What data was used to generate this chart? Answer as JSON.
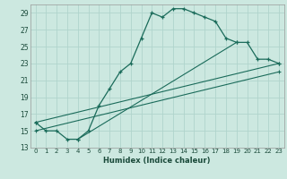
{
  "xlabel": "Humidex (Indice chaleur)",
  "background_color": "#cce8e0",
  "grid_color": "#b0d4cc",
  "line_color": "#1a6b5a",
  "xlim": [
    -0.5,
    23.5
  ],
  "ylim": [
    13,
    30
  ],
  "yticks": [
    13,
    15,
    17,
    19,
    21,
    23,
    25,
    27,
    29
  ],
  "xticks": [
    0,
    1,
    2,
    3,
    4,
    5,
    6,
    7,
    8,
    9,
    10,
    11,
    12,
    13,
    14,
    15,
    16,
    17,
    18,
    19,
    20,
    21,
    22,
    23
  ],
  "series": [
    [
      0,
      16
    ],
    [
      1,
      15
    ],
    [
      2,
      15
    ],
    [
      3,
      14
    ],
    [
      4,
      14
    ],
    [
      5,
      15
    ],
    [
      6,
      18
    ],
    [
      7,
      20
    ],
    [
      8,
      22
    ],
    [
      9,
      23
    ],
    [
      10,
      26
    ],
    [
      11,
      29
    ],
    [
      12,
      28.5
    ],
    [
      13,
      29.5
    ],
    [
      14,
      29.5
    ],
    [
      15,
      29
    ],
    [
      16,
      28.5
    ],
    [
      17,
      28
    ],
    [
      18,
      26
    ],
    [
      19,
      25.5
    ],
    [
      20,
      25.5
    ],
    [
      21,
      23.5
    ],
    [
      22,
      23.5
    ],
    [
      23,
      23
    ]
  ],
  "line2": [
    [
      0,
      16
    ],
    [
      23,
      23
    ]
  ],
  "line3": [
    [
      0,
      15
    ],
    [
      23,
      22
    ]
  ],
  "line4": [
    [
      4,
      14
    ],
    [
      19,
      25.5
    ]
  ]
}
